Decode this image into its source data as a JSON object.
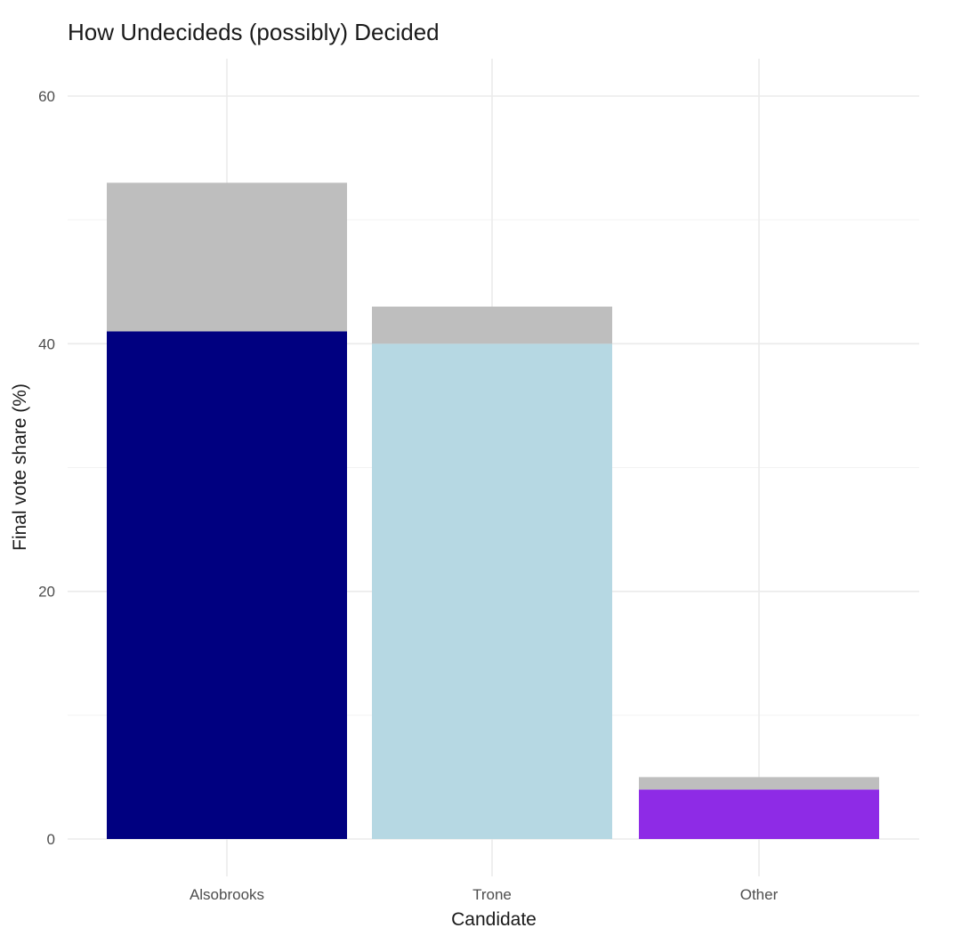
{
  "chart_data": {
    "type": "bar",
    "stacked": true,
    "title": "How Undecideds (possibly) Decided",
    "xlabel": "Candidate",
    "ylabel": "Final vote share (%)",
    "categories": [
      "Alsobrooks",
      "Trone",
      "Other"
    ],
    "ylim": [
      0,
      62
    ],
    "yticks": [
      0,
      20,
      40,
      60
    ],
    "grid": true,
    "legend": "none",
    "series": [
      {
        "values": [
          41,
          40,
          4
        ],
        "colors": [
          "#000080",
          "#b6d8e3",
          "#8e2be6"
        ]
      },
      {
        "values": [
          12,
          3,
          1
        ],
        "colors": [
          "#bebebe",
          "#bebebe",
          "#bebebe"
        ]
      }
    ]
  }
}
